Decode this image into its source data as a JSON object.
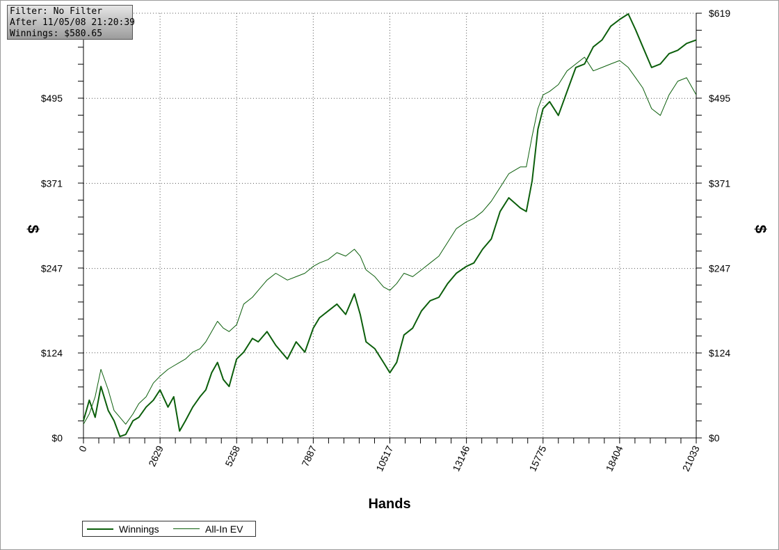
{
  "info_box": {
    "filter": "Filter: No Filter",
    "after": "After 11/05/08 21:20:39",
    "winnings": "Winnings: $580.65"
  },
  "colors": {
    "series": "#0b5e0b",
    "grid": "#555555",
    "axis": "#000000"
  },
  "chart_data": {
    "type": "line",
    "xlabel": "Hands",
    "ylabel": "$",
    "ylabel_right": "$",
    "xlim": [
      0,
      21033
    ],
    "ylim": [
      0,
      619
    ],
    "x_ticks": [
      "0",
      "2629",
      "5258",
      "7887",
      "10517",
      "13146",
      "15775",
      "18404",
      "21033"
    ],
    "y_ticks": [
      "$0",
      "$124",
      "$247",
      "$371",
      "$495",
      "$619"
    ],
    "y_tick_values": [
      0,
      124,
      247,
      371,
      495,
      619
    ],
    "grid": true,
    "legend_position": "bottom-left",
    "series": [
      {
        "name": "Winnings",
        "points": [
          [
            0,
            25
          ],
          [
            200,
            55
          ],
          [
            400,
            30
          ],
          [
            600,
            75
          ],
          [
            850,
            40
          ],
          [
            1050,
            25
          ],
          [
            1250,
            2
          ],
          [
            1450,
            5
          ],
          [
            1700,
            25
          ],
          [
            1900,
            30
          ],
          [
            2150,
            45
          ],
          [
            2400,
            55
          ],
          [
            2629,
            70
          ],
          [
            2900,
            45
          ],
          [
            3100,
            60
          ],
          [
            3300,
            10
          ],
          [
            3500,
            25
          ],
          [
            3750,
            45
          ],
          [
            4000,
            60
          ],
          [
            4200,
            70
          ],
          [
            4400,
            95
          ],
          [
            4600,
            110
          ],
          [
            4800,
            85
          ],
          [
            5000,
            75
          ],
          [
            5258,
            115
          ],
          [
            5500,
            125
          ],
          [
            5800,
            145
          ],
          [
            6000,
            140
          ],
          [
            6300,
            155
          ],
          [
            6600,
            135
          ],
          [
            7000,
            115
          ],
          [
            7300,
            140
          ],
          [
            7600,
            125
          ],
          [
            7887,
            160
          ],
          [
            8100,
            175
          ],
          [
            8400,
            185
          ],
          [
            8700,
            195
          ],
          [
            9000,
            180
          ],
          [
            9300,
            210
          ],
          [
            9500,
            180
          ],
          [
            9700,
            140
          ],
          [
            10000,
            130
          ],
          [
            10300,
            110
          ],
          [
            10517,
            95
          ],
          [
            10750,
            110
          ],
          [
            11000,
            150
          ],
          [
            11300,
            160
          ],
          [
            11600,
            185
          ],
          [
            11900,
            200
          ],
          [
            12200,
            205
          ],
          [
            12500,
            225
          ],
          [
            12800,
            240
          ],
          [
            13146,
            250
          ],
          [
            13400,
            255
          ],
          [
            13700,
            275
          ],
          [
            14000,
            290
          ],
          [
            14300,
            330
          ],
          [
            14600,
            350
          ],
          [
            15000,
            335
          ],
          [
            15200,
            330
          ],
          [
            15400,
            375
          ],
          [
            15600,
            450
          ],
          [
            15775,
            480
          ],
          [
            16000,
            490
          ],
          [
            16300,
            470
          ],
          [
            16600,
            505
          ],
          [
            16900,
            540
          ],
          [
            17200,
            545
          ],
          [
            17500,
            570
          ],
          [
            17800,
            580
          ],
          [
            18100,
            600
          ],
          [
            18404,
            610
          ],
          [
            18700,
            618
          ],
          [
            18950,
            595
          ],
          [
            19200,
            570
          ],
          [
            19500,
            540
          ],
          [
            19800,
            545
          ],
          [
            20100,
            560
          ],
          [
            20400,
            565
          ],
          [
            20700,
            575
          ],
          [
            21033,
            580
          ]
        ]
      },
      {
        "name": "All-In EV",
        "points": [
          [
            0,
            20
          ],
          [
            200,
            35
          ],
          [
            400,
            60
          ],
          [
            600,
            100
          ],
          [
            850,
            70
          ],
          [
            1050,
            40
          ],
          [
            1250,
            30
          ],
          [
            1450,
            20
          ],
          [
            1700,
            35
          ],
          [
            1900,
            50
          ],
          [
            2150,
            60
          ],
          [
            2400,
            80
          ],
          [
            2629,
            90
          ],
          [
            2900,
            100
          ],
          [
            3100,
            105
          ],
          [
            3300,
            110
          ],
          [
            3500,
            115
          ],
          [
            3750,
            125
          ],
          [
            4000,
            130
          ],
          [
            4200,
            140
          ],
          [
            4400,
            155
          ],
          [
            4600,
            170
          ],
          [
            4800,
            160
          ],
          [
            5000,
            155
          ],
          [
            5258,
            165
          ],
          [
            5500,
            195
          ],
          [
            5800,
            205
          ],
          [
            6000,
            215
          ],
          [
            6300,
            230
          ],
          [
            6600,
            240
          ],
          [
            7000,
            230
          ],
          [
            7300,
            235
          ],
          [
            7600,
            240
          ],
          [
            7887,
            250
          ],
          [
            8100,
            255
          ],
          [
            8400,
            260
          ],
          [
            8700,
            270
          ],
          [
            9000,
            265
          ],
          [
            9300,
            275
          ],
          [
            9500,
            265
          ],
          [
            9700,
            245
          ],
          [
            10000,
            235
          ],
          [
            10300,
            220
          ],
          [
            10517,
            215
          ],
          [
            10750,
            225
          ],
          [
            11000,
            240
          ],
          [
            11300,
            235
          ],
          [
            11600,
            245
          ],
          [
            11900,
            255
          ],
          [
            12200,
            265
          ],
          [
            12500,
            285
          ],
          [
            12800,
            305
          ],
          [
            13146,
            315
          ],
          [
            13400,
            320
          ],
          [
            13700,
            330
          ],
          [
            14000,
            345
          ],
          [
            14300,
            365
          ],
          [
            14600,
            385
          ],
          [
            15000,
            395
          ],
          [
            15200,
            395
          ],
          [
            15400,
            440
          ],
          [
            15600,
            480
          ],
          [
            15775,
            500
          ],
          [
            16000,
            505
          ],
          [
            16300,
            515
          ],
          [
            16600,
            535
          ],
          [
            16900,
            545
          ],
          [
            17200,
            555
          ],
          [
            17500,
            535
          ],
          [
            17800,
            540
          ],
          [
            18100,
            545
          ],
          [
            18404,
            550
          ],
          [
            18700,
            540
          ],
          [
            18950,
            525
          ],
          [
            19200,
            510
          ],
          [
            19500,
            480
          ],
          [
            19800,
            470
          ],
          [
            20100,
            500
          ],
          [
            20400,
            520
          ],
          [
            20700,
            525
          ],
          [
            21033,
            500
          ]
        ]
      }
    ]
  }
}
